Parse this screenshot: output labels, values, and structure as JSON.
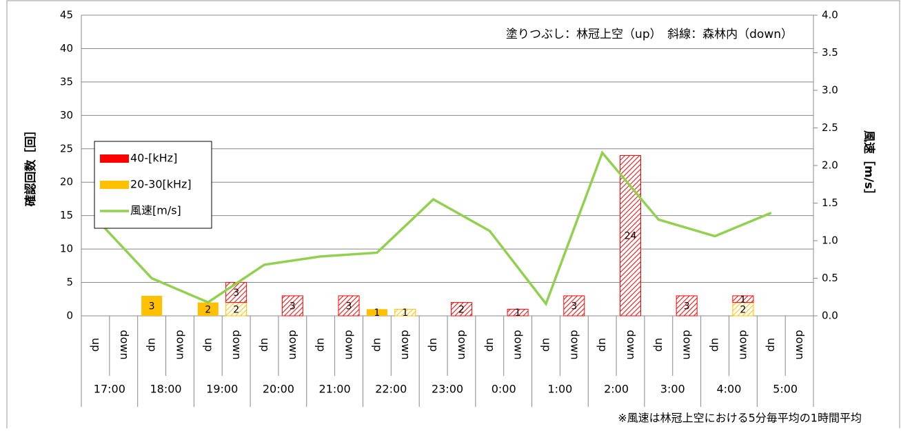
{
  "chart_data": {
    "type": "bar",
    "annotation": "塗りつぶし：林冠上空（up）　斜線：森林内（down）",
    "footnote": "※風速は林冠上空における5分毎平均の1時間平均",
    "ylabel": "確認回数［回］",
    "y2label": "風速［m/s］",
    "categories": [
      "up",
      "down",
      "up",
      "down",
      "up",
      "down",
      "up",
      "down",
      "up",
      "down",
      "up",
      "down",
      "up",
      "down",
      "up",
      "down",
      "up",
      "down",
      "up",
      "down",
      "up",
      "down",
      "up",
      "down",
      "up",
      "down"
    ],
    "groups": [
      "17:00",
      "18:00",
      "19:00",
      "20:00",
      "21:00",
      "22:00",
      "23:00",
      "0:00",
      "1:00",
      "2:00",
      "3:00",
      "4:00",
      "5:00"
    ],
    "series": [
      {
        "name": "40-[kHz]",
        "color": "#ff0000",
        "values": [
          null,
          null,
          null,
          null,
          null,
          3,
          null,
          3,
          null,
          3,
          null,
          null,
          null,
          2,
          null,
          1,
          null,
          3,
          null,
          24,
          null,
          3,
          null,
          1,
          null,
          null
        ]
      },
      {
        "name": "20-30[kHz]",
        "color": "#ffc000",
        "values": [
          null,
          null,
          3,
          null,
          2,
          2,
          null,
          null,
          null,
          null,
          1,
          1,
          null,
          null,
          null,
          null,
          null,
          null,
          null,
          null,
          null,
          null,
          null,
          2,
          null,
          null
        ]
      }
    ],
    "line": {
      "name": "風速[m/s]",
      "color": "#92d050",
      "axis": "y2",
      "values": [
        1.3,
        0.5,
        0.18,
        0.68,
        0.79,
        0.84,
        1.55,
        1.13,
        0.16,
        2.17,
        1.28,
        1.06,
        1.37
      ]
    },
    "ylim": [
      0,
      45
    ],
    "yticks": [
      0,
      5,
      10,
      15,
      20,
      25,
      30,
      35,
      40,
      45
    ],
    "y2lim": [
      0,
      4
    ],
    "y2ticks": [
      {
        "value": 0,
        "label": "0.0"
      },
      {
        "value": 0.5,
        "label": "0.5"
      },
      {
        "value": 1,
        "label": "1.0"
      },
      {
        "value": 1.5,
        "label": "1.5"
      },
      {
        "value": 2,
        "label": "2.0"
      },
      {
        "value": 2.5,
        "label": "2.5"
      },
      {
        "value": 3,
        "label": "3.0"
      },
      {
        "value": 3.5,
        "label": "3.5"
      },
      {
        "value": 4,
        "label": "4.0"
      }
    ],
    "grid": true
  }
}
